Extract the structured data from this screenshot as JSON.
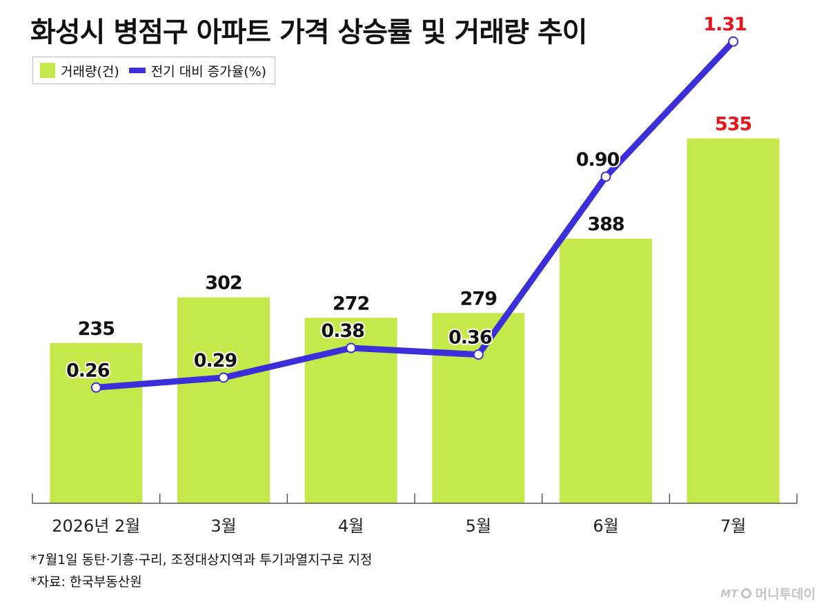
{
  "chart_data": {
    "type": "bar",
    "title": "화성시 병점구 아파트 가격 상승률 및 거래량 추이",
    "categories": [
      "2026년 2월",
      "3월",
      "4월",
      "5월",
      "6월",
      "7월"
    ],
    "series": [
      {
        "name": "거래량(건)",
        "type": "bar",
        "values": [
          235,
          302,
          272,
          279,
          388,
          535
        ],
        "color": "#c5e84b"
      },
      {
        "name": "전기 대비 증가율(%)",
        "type": "line",
        "values": [
          0.26,
          0.29,
          0.38,
          0.36,
          0.9,
          1.31
        ],
        "color": "#3a2fd8"
      }
    ],
    "highlight_color": "#e8141c",
    "legend_position": "top-left"
  },
  "notes": {
    "line1": "*7월1일 동탄·기흥·구리, 조정대상지역과 투기과열지구로 지정",
    "line2": "*자료: 한국부동산원"
  },
  "logo": {
    "mark": "MT",
    "name": "머니투데이"
  }
}
